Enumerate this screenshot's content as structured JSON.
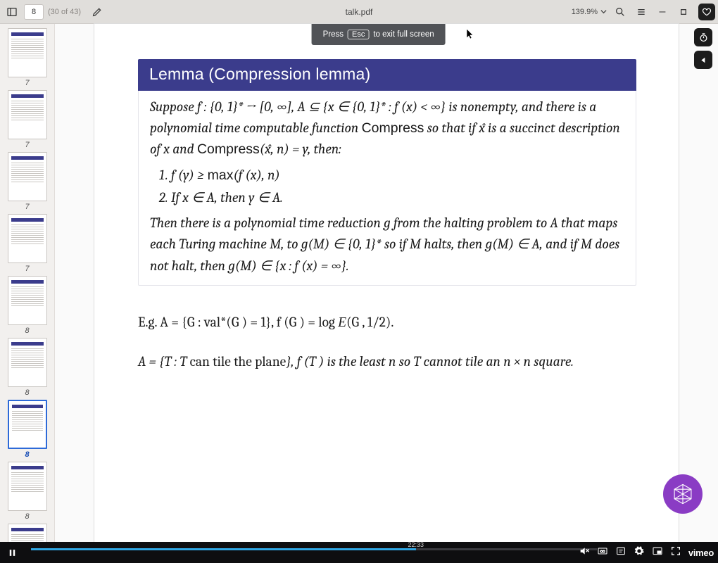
{
  "header": {
    "page_current": "8",
    "page_context": "(30 of 43)",
    "title": "talk.pdf",
    "zoom": "139.9%"
  },
  "thumbs": [
    {
      "label": "7",
      "selected": false
    },
    {
      "label": "7",
      "selected": false
    },
    {
      "label": "7",
      "selected": false
    },
    {
      "label": "7",
      "selected": false
    },
    {
      "label": "8",
      "selected": false
    },
    {
      "label": "8",
      "selected": false
    },
    {
      "label": "8",
      "selected": true
    },
    {
      "label": "8",
      "selected": false
    },
    {
      "label": "",
      "selected": false
    }
  ],
  "tooltip": {
    "pre": "Press",
    "key": "Esc",
    "post": "to exit full screen"
  },
  "lemma": {
    "title": "Lemma (Compression lemma)",
    "p1a": "Suppose f : {0, 1}* → [0, ∞], A ⊆ {x ∈ {0, 1}* : f (x) < ∞} is nonempty, and there is a polynomial time computable function ",
    "p1b": "Compress",
    "p1c": " so that if x̂ is a succinct description of x and ",
    "p1d": "Compress",
    "p1e": "(x̂, n) = y, then:",
    "li1a": "f (y) ≥ ",
    "li1b": "max",
    "li1c": "(f (x), n)",
    "li2": "If x ∈ A, then y ∈ A.",
    "p2": "Then there is a polynomial time reduction g from the halting problem to A that maps each Turing machine M, to g(M) ∈ {0, 1}* so if M halts, then g(M) ∈ A, and if M does not halt, then g(M) ∈ {x : f (x) = ∞}."
  },
  "post": {
    "eg_a": "E.g.  A = {G : ",
    "eg_b": "val",
    "eg_c": "*(G ) = 1},  f (G ) = log ",
    "eg_cal": "E",
    "eg_d": "(G , 1/2).",
    "tile_a": "A = {T : T ",
    "tile_b": "can tile the plane",
    "tile_c": "},  f (T ) is the least n so T cannot tile an n × n square."
  },
  "video": {
    "time_label": "22:33",
    "progress_pct": 68,
    "brand": "vimeo"
  },
  "colors": {
    "header_bg": "#e0dedb",
    "lemma_bg": "#3b3c8c",
    "progress": "#2fa7e4",
    "selected": "#2d6ad8",
    "badge": "#8a3cc4"
  }
}
